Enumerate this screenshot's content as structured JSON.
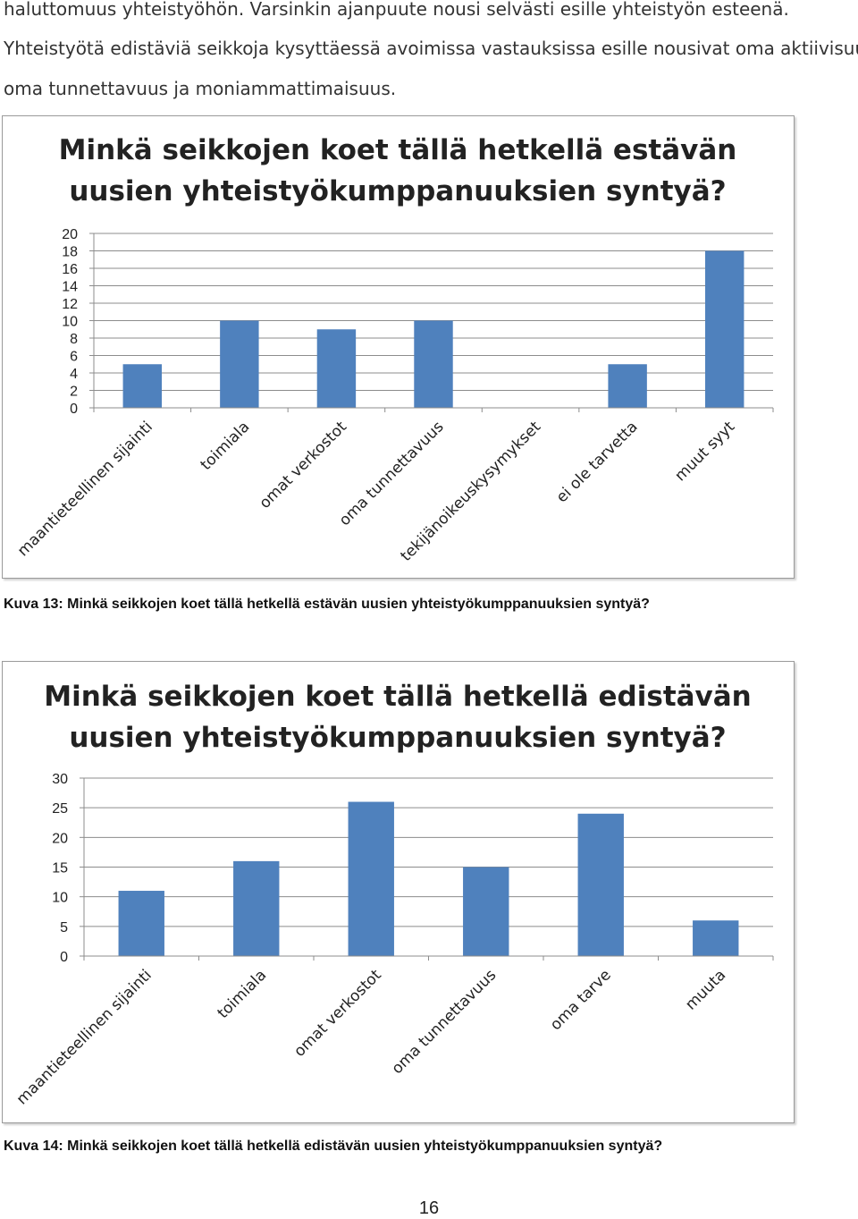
{
  "intro": {
    "lines": [
      "haluttomuus yhteistyöhön. Varsinkin ajanpuute nousi selvästi esille yhteistyön esteenä.",
      "Yhteistyötä edistäviä seikkoja kysyttäessä avoimissa vastauksissa esille nousivat oma aktiivisuus,",
      "oma tunnettavuus ja moniammattimaisuus."
    ]
  },
  "chart_data": [
    {
      "type": "bar",
      "title": [
        "Minkä seikkojen koet tällä hetkellä estävän",
        "uusien yhteistyökumppanuuksien syntyä?"
      ],
      "categories": [
        "maantieteellinen sijainti",
        "toimiala",
        "omat verkostot",
        "oma tunnettavuus",
        "tekijänoikeuskysymykset",
        "ei ole tarvetta",
        "muut syyt"
      ],
      "values": [
        5,
        10,
        9,
        10,
        0,
        5,
        18
      ],
      "ylim": [
        0,
        20
      ],
      "yticks": [
        0,
        2,
        4,
        6,
        8,
        10,
        12,
        14,
        16,
        18,
        20
      ],
      "xlabel": "",
      "ylabel": "",
      "grid": true,
      "bar_color": "#4f81bd"
    },
    {
      "type": "bar",
      "title": [
        "Minkä seikkojen koet tällä hetkellä edistävän",
        "uusien yhteistyökumppanuuksien syntyä?"
      ],
      "categories": [
        "maantieteellinen sijainti",
        "toimiala",
        "omat verkostot",
        "oma tunnettavuus",
        "oma tarve",
        "muuta"
      ],
      "values": [
        11,
        16,
        26,
        15,
        24,
        6
      ],
      "ylim": [
        0,
        30
      ],
      "yticks": [
        0,
        5,
        10,
        15,
        20,
        25,
        30
      ],
      "xlabel": "",
      "ylabel": "",
      "grid": true,
      "bar_color": "#4f81bd"
    }
  ],
  "captions": [
    "Kuva 13: Minkä seikkojen koet tällä hetkellä estävän uusien yhteistyökumppanuuksien syntyä?",
    "Kuva 14: Minkä seikkojen koet tällä hetkellä edistävän uusien yhteistyökumppanuuksien syntyä?"
  ],
  "page_number": "16"
}
